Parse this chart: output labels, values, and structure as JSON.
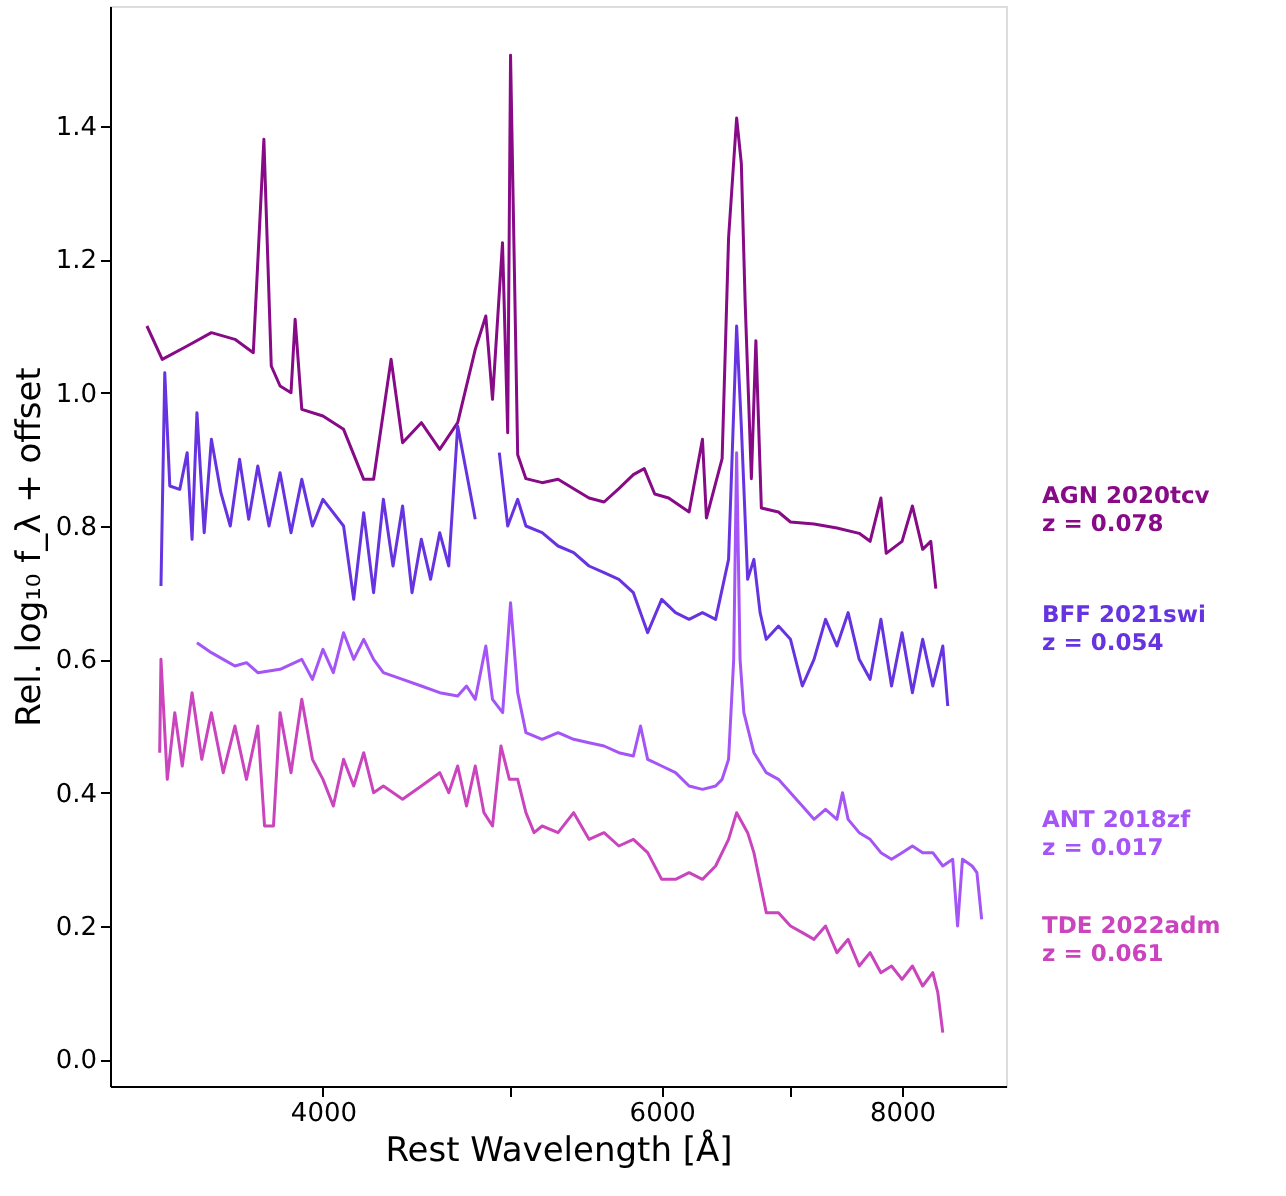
{
  "chart_data": {
    "type": "line",
    "xlabel": "Rest Wavelength [Å]",
    "ylabel": "Rel. log₁₀ f_λ + offset",
    "log": "x",
    "grid": false,
    "legend": false,
    "line_style": "solid",
    "marker": "none",
    "xlim": [
      3100,
      9060
    ],
    "ylim": [
      -0.04,
      1.58
    ],
    "xticks": [
      4000,
      {
        "value": 5000,
        "label": null
      },
      6000,
      {
        "value": 7000,
        "label": null
      },
      8000
    ],
    "yticks": [
      {
        "value": 0,
        "label": "0.0"
      },
      {
        "value": 0.2,
        "label": "0.2"
      },
      {
        "value": 0.4,
        "label": "0.4"
      },
      {
        "value": 0.6,
        "label": "0.6"
      },
      {
        "value": 0.8,
        "label": "0.8"
      },
      {
        "value": 1.0,
        "label": "1.0"
      },
      {
        "value": 1.2,
        "label": "1.2"
      },
      {
        "value": 1.4,
        "label": "1.4"
      }
    ],
    "annotations": [
      "z = 0.078",
      "z = 0.054",
      "z = 0.017",
      "z = 0.061"
    ],
    "series": [
      {
        "name": "AGN 2020tcv",
        "color": "#870a87",
        "x": [
          3240,
          3300,
          3400,
          3500,
          3600,
          3680,
          3727,
          3760,
          3800,
          3850,
          3869,
          3900,
          4000,
          4100,
          4200,
          4250,
          4340,
          4400,
          4500,
          4600,
          4700,
          4800,
          4861,
          4900,
          4959,
          4990,
          5007,
          5050,
          5100,
          5200,
          5300,
          5400,
          5500,
          5600,
          5700,
          5800,
          5876,
          5950,
          6050,
          6200,
          6300,
          6330,
          6450,
          6500,
          6563,
          6600,
          6630,
          6680,
          6716,
          6760,
          6900,
          7000,
          7200,
          7400,
          7600,
          7700,
          7800,
          7850,
          8000,
          8100,
          8200,
          8280,
          8330
        ],
        "values": [
          1.1,
          1.05,
          1.07,
          1.09,
          1.08,
          1.06,
          1.38,
          1.04,
          1.01,
          1.0,
          1.11,
          0.975,
          0.965,
          0.945,
          0.87,
          0.87,
          1.05,
          0.925,
          0.955,
          0.915,
          0.955,
          1.065,
          1.115,
          0.99,
          1.225,
          0.94,
          1.506,
          0.907,
          0.871,
          0.865,
          0.87,
          0.856,
          0.842,
          0.836,
          0.856,
          0.877,
          0.886,
          0.848,
          0.842,
          0.821,
          0.93,
          0.812,
          0.901,
          1.232,
          1.412,
          1.344,
          1.137,
          0.871,
          1.078,
          0.827,
          0.821,
          0.806,
          0.803,
          0.797,
          0.789,
          0.777,
          0.842,
          0.759,
          0.777,
          0.83,
          0.765,
          0.777,
          0.706
        ]
      },
      {
        "name": "BFF 2021swi",
        "color": "#6633e0",
        "x": [
          3295,
          3310,
          3330,
          3370,
          3400,
          3420,
          3440,
          3470,
          3500,
          3540,
          3580,
          3620,
          3660,
          3700,
          3750,
          3800,
          3850,
          3900,
          3950,
          4000,
          4100,
          4150,
          4200,
          4250,
          4300,
          4350,
          4400,
          4450,
          4500,
          4550,
          4600,
          4650,
          4700,
          4750,
          4800,
          4850,
          4940,
          4990,
          5050,
          5100,
          5200,
          5300,
          5400,
          5500,
          5600,
          5700,
          5800,
          5900,
          6000,
          6100,
          6200,
          6300,
          6400,
          6500,
          6563,
          6600,
          6650,
          6700,
          6750,
          6800,
          6900,
          7000,
          7100,
          7200,
          7300,
          7400,
          7500,
          7600,
          7700,
          7800,
          7900,
          8000,
          8100,
          8200,
          8300,
          8400,
          8450
        ],
        "values": [
          0.71,
          1.03,
          0.86,
          0.855,
          0.91,
          0.78,
          0.97,
          0.79,
          0.93,
          0.85,
          0.8,
          0.9,
          0.81,
          0.89,
          0.8,
          0.88,
          0.79,
          0.87,
          0.8,
          0.84,
          0.8,
          0.69,
          0.82,
          0.7,
          0.84,
          0.74,
          0.83,
          0.7,
          0.78,
          0.72,
          0.79,
          0.74,
          0.95,
          0.88,
          0.81,
          null,
          0.91,
          0.8,
          0.84,
          0.8,
          0.79,
          0.77,
          0.76,
          0.74,
          0.73,
          0.72,
          0.7,
          0.64,
          0.69,
          0.67,
          0.66,
          0.67,
          0.66,
          0.75,
          1.1,
          0.95,
          0.72,
          0.75,
          0.67,
          0.63,
          0.65,
          0.63,
          0.56,
          0.6,
          0.66,
          0.62,
          0.67,
          0.6,
          0.57,
          0.66,
          0.56,
          0.64,
          0.55,
          0.63,
          0.56,
          0.62,
          0.53
        ]
      },
      {
        "name": "ANT 2018zf",
        "color": "#a555f5",
        "x": [
          3440,
          3500,
          3550,
          3600,
          3650,
          3700,
          3800,
          3900,
          3950,
          4000,
          4050,
          4100,
          4150,
          4200,
          4250,
          4300,
          4400,
          4500,
          4600,
          4700,
          4750,
          4800,
          4861,
          4900,
          4960,
          5007,
          5050,
          5100,
          5200,
          5300,
          5400,
          5500,
          5600,
          5700,
          5800,
          5850,
          5900,
          6000,
          6100,
          6200,
          6300,
          6400,
          6450,
          6500,
          6540,
          6563,
          6590,
          6620,
          6700,
          6800,
          6900,
          7000,
          7100,
          7200,
          7300,
          7400,
          7450,
          7500,
          7600,
          7700,
          7800,
          7900,
          8000,
          8100,
          8200,
          8300,
          8400,
          8500,
          8550,
          8600,
          8700,
          8750,
          8800
        ],
        "values": [
          0.625,
          0.61,
          0.6,
          0.59,
          0.595,
          0.58,
          0.585,
          0.6,
          0.57,
          0.615,
          0.58,
          0.64,
          0.6,
          0.63,
          0.6,
          0.58,
          0.57,
          0.56,
          0.55,
          0.545,
          0.56,
          0.54,
          0.62,
          0.54,
          0.52,
          0.685,
          0.55,
          0.49,
          0.48,
          0.49,
          0.48,
          0.475,
          0.47,
          0.46,
          0.455,
          0.5,
          0.45,
          0.44,
          0.43,
          0.41,
          0.405,
          0.41,
          0.42,
          0.45,
          0.6,
          0.91,
          0.6,
          0.52,
          0.46,
          0.43,
          0.42,
          0.4,
          0.38,
          0.36,
          0.375,
          0.36,
          0.4,
          0.36,
          0.34,
          0.33,
          0.31,
          0.3,
          0.31,
          0.32,
          0.31,
          0.31,
          0.29,
          0.3,
          0.2,
          0.3,
          0.29,
          0.28,
          0.21
        ]
      },
      {
        "name": "TDE 2022adm",
        "color": "#c944bd",
        "x": [
          3290,
          3295,
          3320,
          3350,
          3380,
          3420,
          3460,
          3500,
          3550,
          3600,
          3650,
          3700,
          3730,
          3770,
          3800,
          3850,
          3900,
          3950,
          4000,
          4050,
          4100,
          4150,
          4200,
          4250,
          4300,
          4400,
          4500,
          4600,
          4650,
          4700,
          4750,
          4800,
          4850,
          4900,
          4950,
          5000,
          5050,
          5100,
          5150,
          5200,
          5300,
          5400,
          5500,
          5600,
          5700,
          5800,
          5900,
          6000,
          6100,
          6200,
          6300,
          6400,
          6500,
          6563,
          6650,
          6700,
          6800,
          6900,
          7000,
          7100,
          7200,
          7300,
          7400,
          7500,
          7600,
          7700,
          7800,
          7900,
          8000,
          8100,
          8200,
          8300,
          8350,
          8400
        ],
        "values": [
          0.46,
          0.6,
          0.42,
          0.52,
          0.44,
          0.55,
          0.45,
          0.52,
          0.43,
          0.5,
          0.42,
          0.5,
          0.35,
          0.35,
          0.52,
          0.43,
          0.54,
          0.45,
          0.42,
          0.38,
          0.45,
          0.41,
          0.46,
          0.4,
          0.41,
          0.39,
          0.41,
          0.43,
          0.4,
          0.44,
          0.38,
          0.44,
          0.37,
          0.35,
          0.47,
          0.42,
          0.42,
          0.37,
          0.34,
          0.35,
          0.34,
          0.37,
          0.33,
          0.34,
          0.32,
          0.33,
          0.31,
          0.27,
          0.27,
          0.28,
          0.27,
          0.29,
          0.33,
          0.37,
          0.34,
          0.31,
          0.22,
          0.22,
          0.2,
          0.19,
          0.18,
          0.2,
          0.16,
          0.18,
          0.14,
          0.16,
          0.13,
          0.14,
          0.12,
          0.14,
          0.11,
          0.13,
          0.1,
          0.04
        ]
      }
    ]
  }
}
